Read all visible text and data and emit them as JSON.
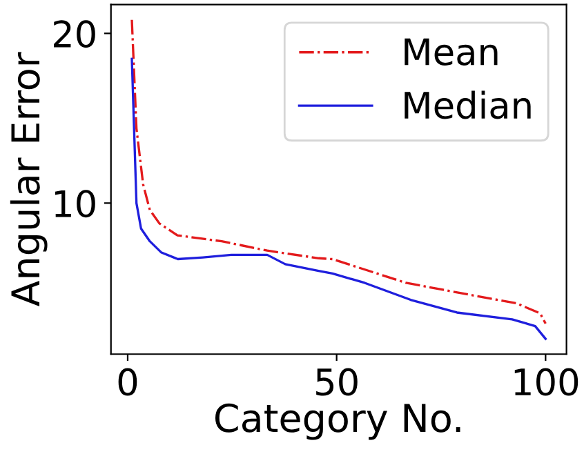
{
  "chart_data": {
    "type": "line",
    "xlabel": "Category No.",
    "ylabel": "Angular Error",
    "xlim": [
      -4,
      105
    ],
    "ylim": [
      1.1,
      21.7
    ],
    "xticks": [
      0,
      50,
      100
    ],
    "yticks": [
      10,
      20
    ],
    "grid": false,
    "legend": "top right",
    "series": [
      {
        "name": "Mean",
        "color": "#e31a1c",
        "line_style": "dashdot",
        "x": [
          1,
          2.1,
          3.7,
          5.3,
          7.6,
          11.9,
          22.5,
          33.4,
          45.7,
          49,
          66.6,
          84,
          93,
          98.7,
          100
        ],
        "values": [
          20.8,
          14.4,
          11.1,
          9.6,
          8.8,
          8.1,
          7.75,
          7.2,
          6.75,
          6.7,
          5.3,
          4.5,
          4.1,
          3.5,
          2.9
        ]
      },
      {
        "name": "Median",
        "color": "#1f1fdd",
        "line_style": "solid",
        "x": [
          1,
          2.1,
          3.2,
          5.3,
          8,
          12,
          18,
          24.8,
          33.4,
          37.7,
          45.7,
          49,
          56.7,
          67.7,
          78.8,
          92,
          97.5,
          100
        ],
        "values": [
          18.5,
          10.0,
          8.5,
          7.75,
          7.1,
          6.7,
          6.8,
          6.95,
          6.95,
          6.4,
          6.0,
          5.85,
          5.3,
          4.3,
          3.55,
          3.15,
          2.75,
          2.0
        ]
      }
    ]
  }
}
